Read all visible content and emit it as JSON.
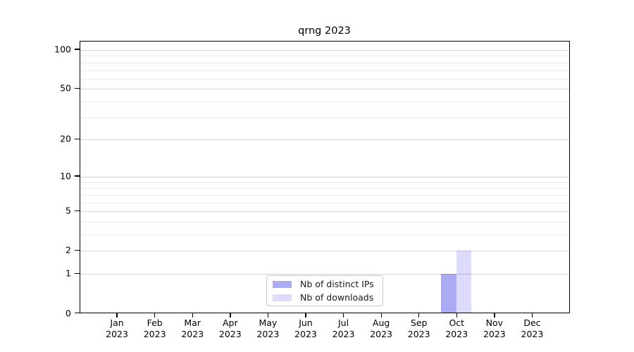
{
  "chart_data": {
    "type": "bar",
    "title": "qrng 2023",
    "categories": [
      "Jan",
      "Feb",
      "Mar",
      "Apr",
      "May",
      "Jun",
      "Jul",
      "Aug",
      "Sep",
      "Oct",
      "Nov",
      "Dec"
    ],
    "x_year": "2023",
    "series": [
      {
        "name": "Nb of distinct IPs",
        "color": "rgba(10,10,220,0.34)",
        "legend_color": "#abaaf3",
        "values": [
          0,
          0,
          0,
          0,
          0,
          0,
          0,
          0,
          0,
          1,
          0,
          0
        ]
      },
      {
        "name": "Nb of downloads",
        "color": "rgba(10,10,220,0.14)",
        "legend_color": "#dcdcf8",
        "values": [
          0,
          0,
          0,
          0,
          0,
          0,
          0,
          0,
          0,
          2,
          0,
          0
        ]
      }
    ],
    "y_scale": "log1p",
    "ylim": [
      0,
      100
    ],
    "y_major_ticks": [
      0,
      1,
      2,
      5,
      10,
      20,
      50,
      100
    ],
    "y_minor_ticks": [
      3,
      4,
      6,
      7,
      8,
      9,
      30,
      40,
      60,
      70,
      80,
      90
    ],
    "grid": true,
    "legend_position": "lower center"
  },
  "colors": {
    "major_grid": "#d4d4d4",
    "minor_grid": "#ebebeb",
    "axis": "#000000",
    "text": "#000000"
  }
}
